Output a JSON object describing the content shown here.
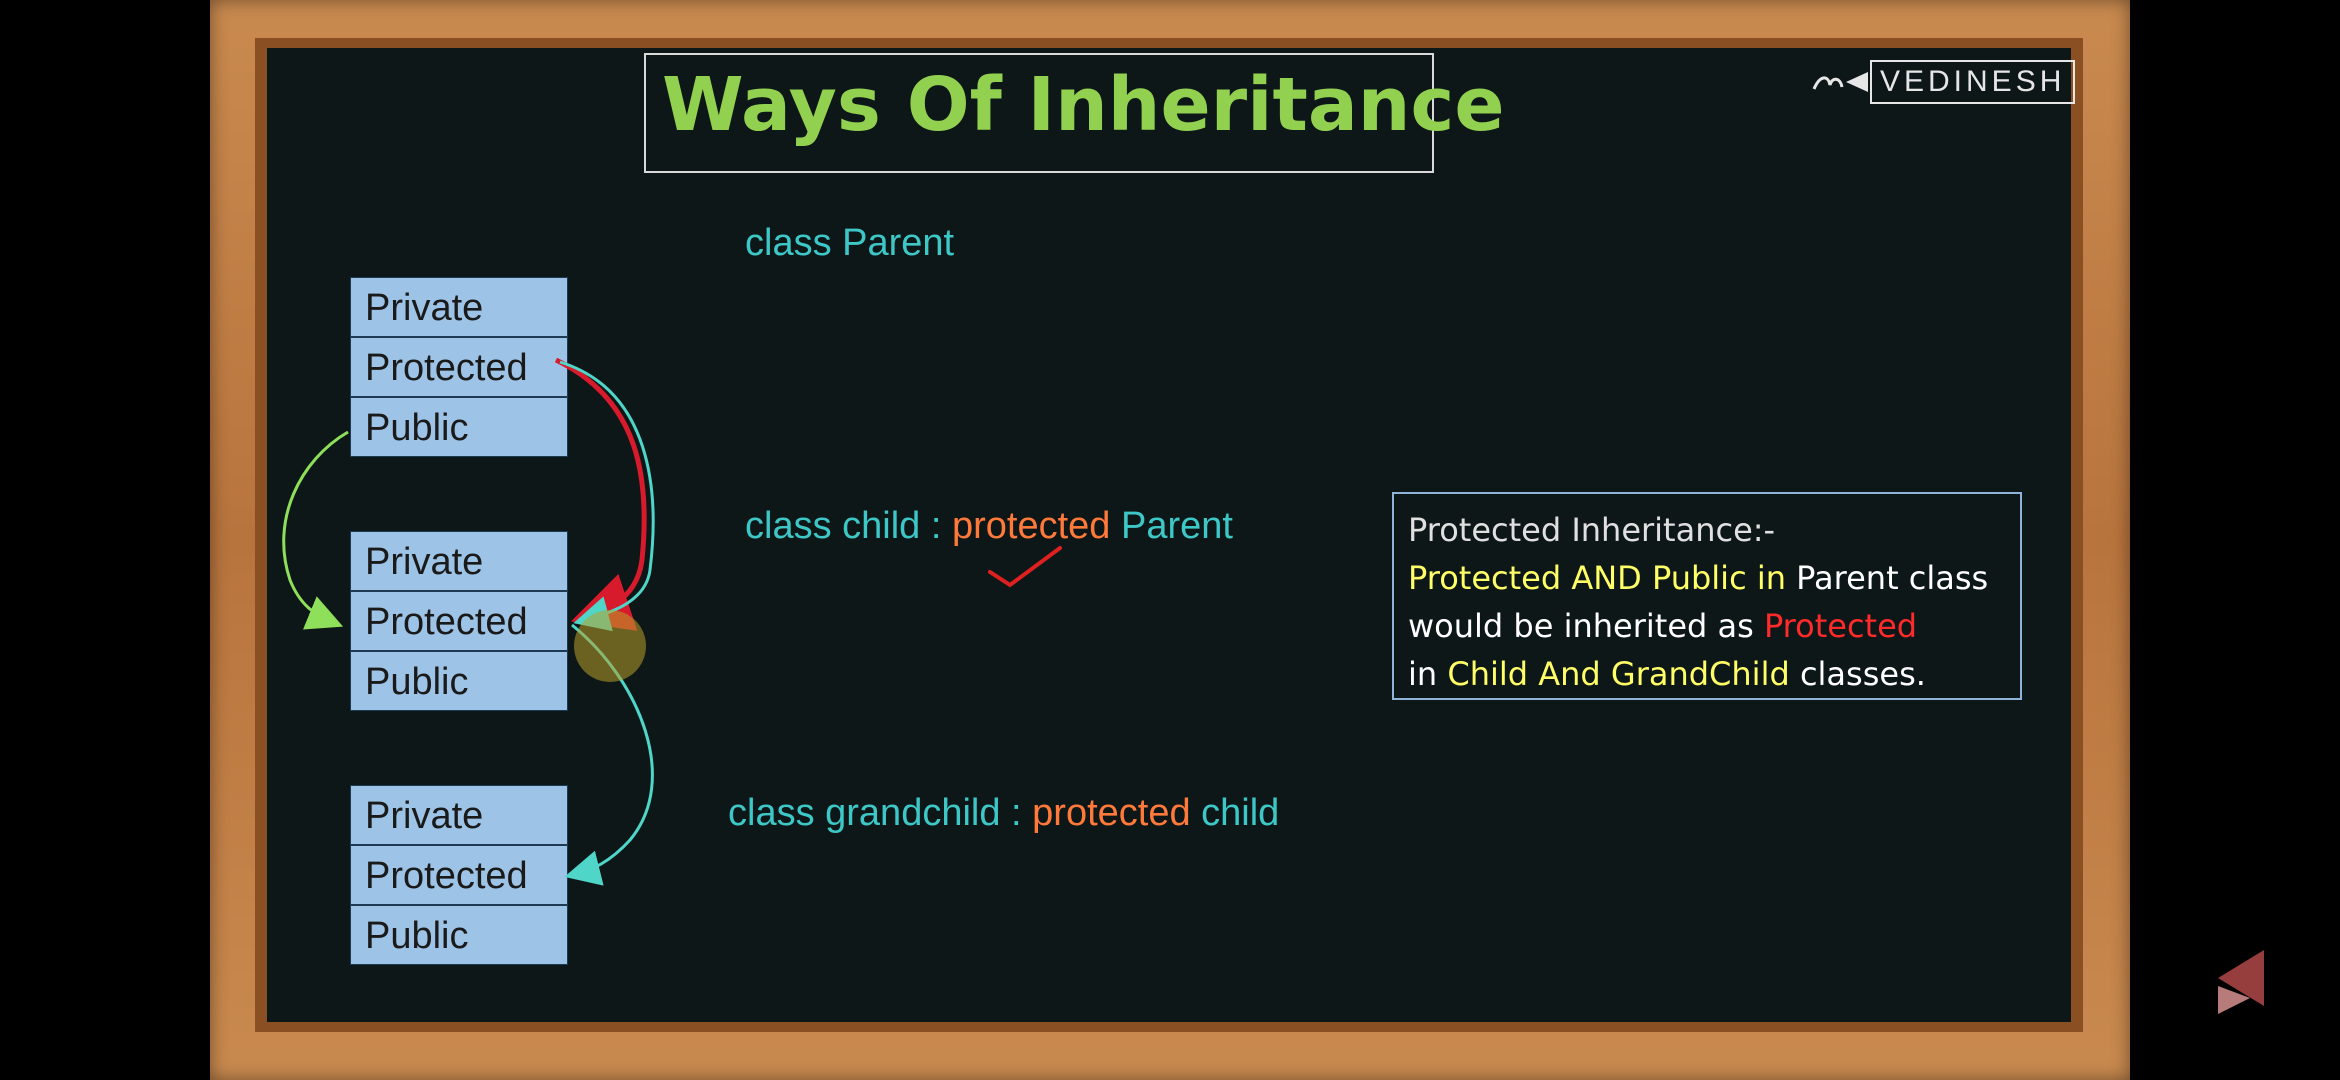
{
  "title": "Ways Of Inheritance",
  "logo": "VEDINESH",
  "classes": [
    {
      "private": "Private",
      "protected": "Protected",
      "public": "Public"
    },
    {
      "private": "Private",
      "protected": "Protected",
      "public": "Public"
    },
    {
      "private": "Private",
      "protected": "Protected",
      "public": "Public"
    }
  ],
  "code": {
    "parent": "class Parent",
    "child_prefix": "class child : ",
    "child_access": "protected",
    "child_base": " Parent",
    "grandchild_prefix": "class grandchild : ",
    "grandchild_access": "protected",
    "grandchild_base": " child"
  },
  "note": {
    "heading": "Protected Inheritance:-",
    "l2_a": "Protected AND Public in",
    "l2_b": " Parent class",
    "l3_a": "would be inherited as ",
    "l3_b": "Protected",
    "l4_a": "in ",
    "l4_b": "Child And GrandChild",
    "l4_c": " classes."
  },
  "colors": {
    "board": "#0e1718",
    "title": "#92d050",
    "class_cell": "#9dc3e6",
    "code_text": "#3ec7c7",
    "access_keyword": "#ff7a3a",
    "note_highlight": "#ffff66",
    "note_protected": "#ff2a2a",
    "arrow_green": "#8ee05a",
    "arrow_cyan": "#4fd6c8",
    "arrow_red": "#d81b2c"
  },
  "icons": [
    "logo-mark-icon",
    "play-navigation-icon"
  ]
}
